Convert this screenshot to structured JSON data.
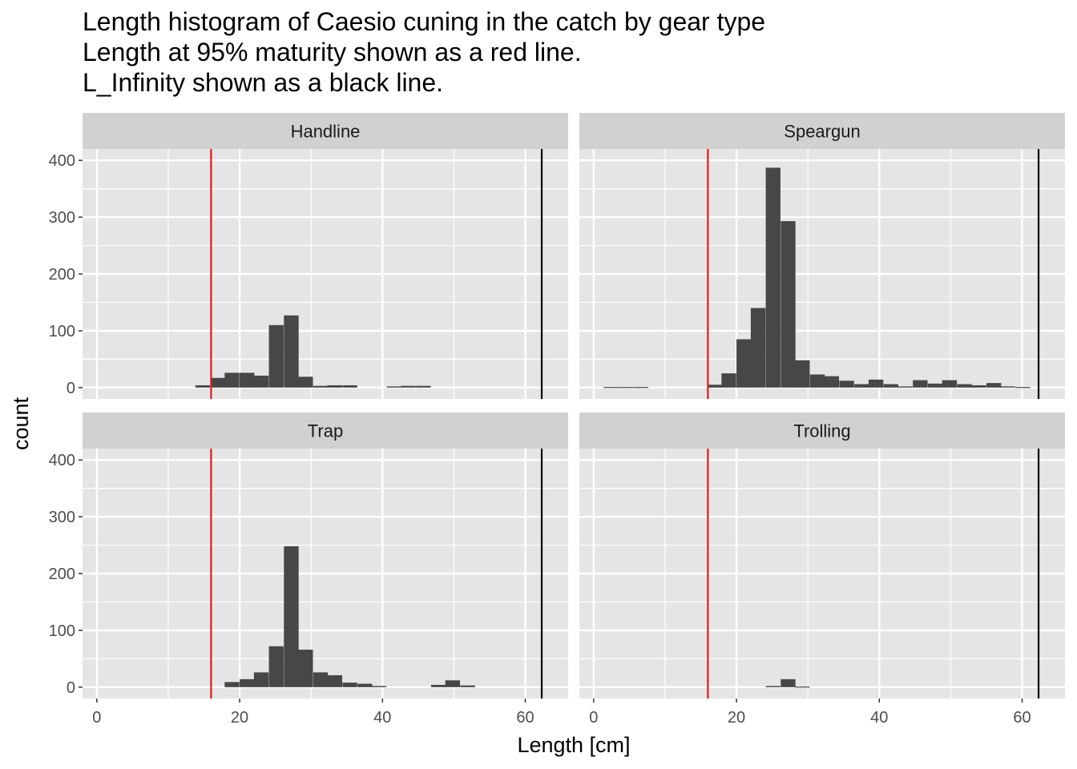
{
  "chart_data": {
    "type": "bar",
    "title_lines": [
      "Length histogram of Caesio cuning in the catch by gear type",
      "Length at 95% maturity shown as a red line.",
      "L_Infinity shown as a black line."
    ],
    "xlabel": "Length [cm]",
    "ylabel": "count",
    "xlim": [
      -2,
      66
    ],
    "ylim": [
      -20,
      420
    ],
    "x_ticks": [
      0,
      20,
      40,
      60
    ],
    "y_ticks": [
      0,
      100,
      200,
      300,
      400
    ],
    "bin_width": 2.06,
    "maturity_95_length": 16,
    "l_infinity": 62.3,
    "colors": {
      "panel_background": "#e5e5e5",
      "grid": "#ffffff",
      "strip": "#d1d1d1",
      "bar": "#474747",
      "maturity_line": "#e41a1c",
      "linf_line": "#000000"
    },
    "panels": [
      {
        "name": "Handline",
        "bin_starts": [
          13.8,
          15.9,
          17.9,
          20.0,
          22.0,
          24.1,
          26.2,
          28.2,
          30.3,
          32.3,
          34.4,
          40.6,
          42.6,
          44.7
        ],
        "counts": [
          4,
          17,
          26,
          26,
          21,
          110,
          127,
          19,
          3,
          4,
          4,
          2,
          3,
          3
        ]
      },
      {
        "name": "Speargun",
        "bin_starts": [
          1.4,
          3.5,
          5.6,
          15.9,
          17.9,
          20.0,
          22.0,
          24.1,
          26.2,
          28.2,
          30.3,
          32.3,
          34.4,
          36.5,
          38.5,
          40.6,
          42.6,
          44.7,
          46.8,
          48.8,
          50.9,
          52.9,
          55.0,
          57.0,
          59.1
        ],
        "counts": [
          1,
          1,
          1,
          5,
          25,
          85,
          140,
          387,
          293,
          48,
          23,
          20,
          12,
          6,
          14,
          6,
          2,
          13,
          7,
          13,
          6,
          4,
          8,
          2,
          1
        ]
      },
      {
        "name": "Trap",
        "bin_starts": [
          17.9,
          20.0,
          22.0,
          24.1,
          26.2,
          28.2,
          30.3,
          32.3,
          34.4,
          36.5,
          38.5,
          46.8,
          48.8,
          50.9
        ],
        "counts": [
          9,
          14,
          26,
          72,
          248,
          66,
          26,
          21,
          8,
          6,
          2,
          4,
          12,
          3
        ]
      },
      {
        "name": "Trolling",
        "bin_starts": [
          24.1,
          26.2,
          28.2
        ],
        "counts": [
          2,
          14,
          1
        ]
      }
    ]
  }
}
